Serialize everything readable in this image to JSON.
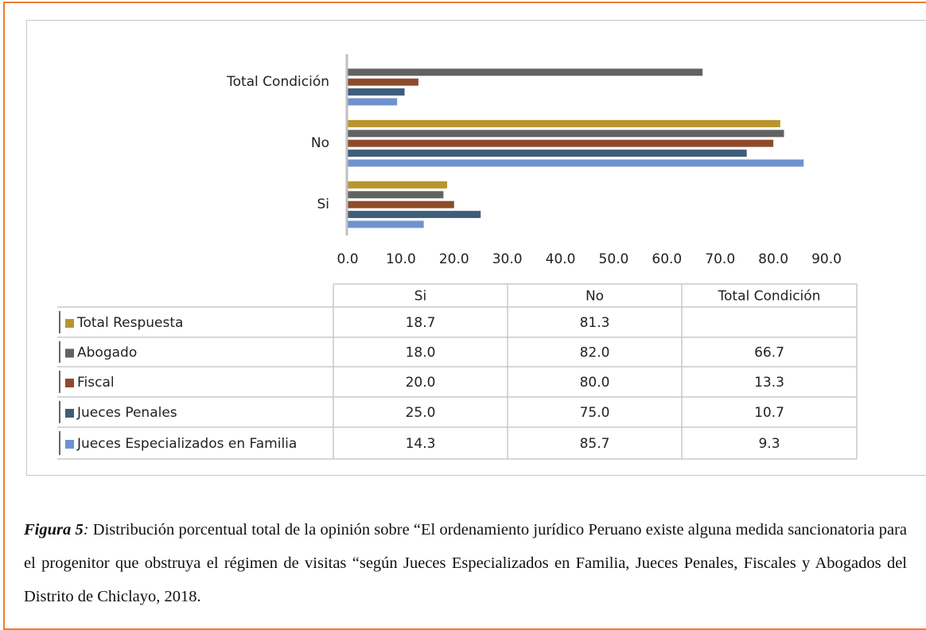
{
  "chart_data": {
    "type": "bar",
    "orientation": "horizontal",
    "categories": [
      "Si",
      "No",
      "Total Condición"
    ],
    "series": [
      {
        "name": "Total Respuesta",
        "color": "#b8962e",
        "values": [
          18.7,
          81.3,
          null
        ],
        "value_labels": [
          "18.7",
          "81.3",
          null
        ]
      },
      {
        "name": "Abogado",
        "color": "#626262",
        "values": [
          18.0,
          82.0,
          66.7
        ],
        "value_labels": [
          "18.0",
          "82.0",
          "66.7"
        ]
      },
      {
        "name": "Fiscal",
        "color": "#8e4b2c",
        "values": [
          20.0,
          80.0,
          13.3
        ],
        "value_labels": [
          "20.0",
          "80.0",
          "13.3"
        ]
      },
      {
        "name": "Jueces Penales",
        "color": "#3f5d7a",
        "values": [
          25.0,
          75.0,
          10.7
        ],
        "value_labels": [
          "25.0",
          "75.0",
          "10.7"
        ]
      },
      {
        "name": "Jueces Especializados en Familia",
        "color": "#6f92cf",
        "values": [
          14.3,
          85.7,
          9.3
        ],
        "value_labels": [
          "14.3",
          "85.7",
          "9.3"
        ]
      }
    ],
    "xlim": [
      0,
      90
    ],
    "xticks": [
      {
        "value": 0,
        "label": "0.0"
      },
      {
        "value": 10,
        "label": "10.0"
      },
      {
        "value": 20,
        "label": "20.0"
      },
      {
        "value": 30,
        "label": "30.0"
      },
      {
        "value": 40,
        "label": "40.0"
      },
      {
        "value": 50,
        "label": "50.0"
      },
      {
        "value": 60,
        "label": "60.0"
      },
      {
        "value": 70,
        "label": "70.0"
      },
      {
        "value": 80,
        "label": "80.0"
      },
      {
        "value": 90,
        "label": "90.0"
      }
    ],
    "data_table": true
  },
  "caption": {
    "label": "Figura 5",
    "separator": ":",
    "text": " Distribución porcentual total de la opinión sobre “El ordenamiento jurídico Peruano existe alguna medida sancionatoria para el progenitor que obstruya el régimen de visitas “según Jueces Especializados en Familia, Jueces Penales, Fiscales y Abogados del Distrito de Chiclayo, 2018."
  }
}
